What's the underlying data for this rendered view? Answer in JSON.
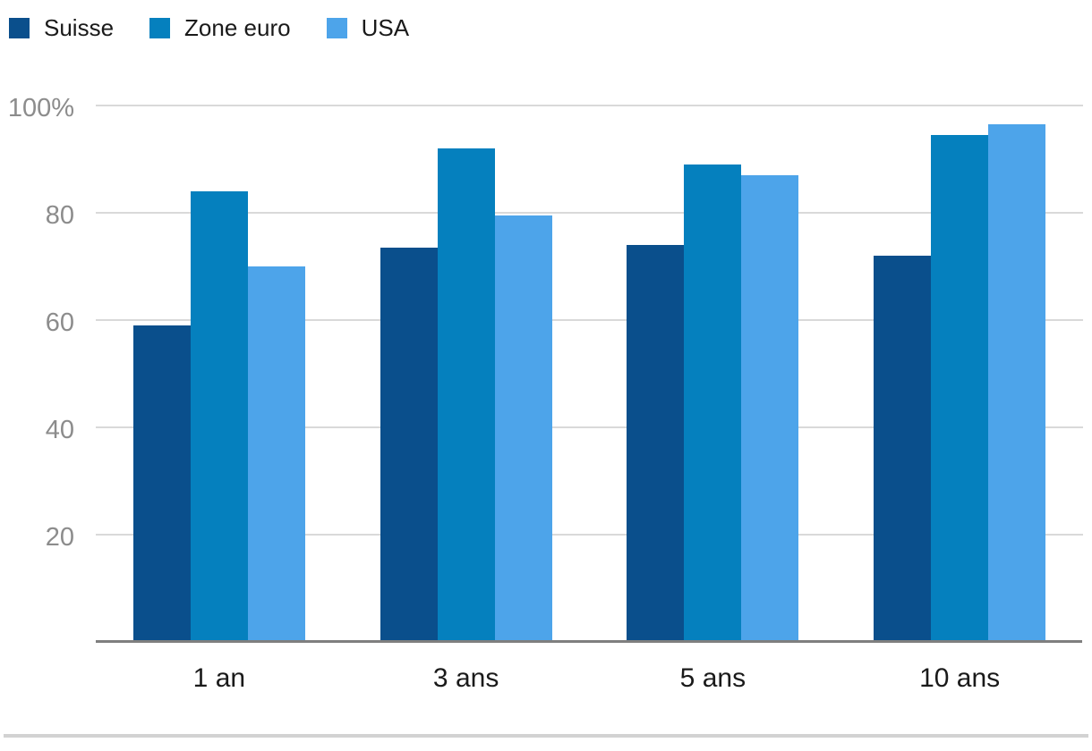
{
  "chart_data": {
    "type": "bar",
    "title": "",
    "xlabel": "",
    "ylabel": "",
    "categories": [
      "1 an",
      "3 ans",
      "5 ans",
      "10 ans"
    ],
    "series": [
      {
        "name": "Suisse",
        "color": "#0a4f8c",
        "values": [
          59,
          73.5,
          74,
          72
        ]
      },
      {
        "name": "Zone euro",
        "color": "#0580be",
        "values": [
          84,
          92,
          89,
          94.5
        ]
      },
      {
        "name": "USA",
        "color": "#4da4ea",
        "values": [
          70,
          79.5,
          87,
          96.5
        ]
      }
    ],
    "ylim": [
      0,
      100
    ],
    "yticks": [
      {
        "value": 100,
        "label": "100%"
      },
      {
        "value": 80,
        "label": "80"
      },
      {
        "value": 60,
        "label": "60"
      },
      {
        "value": 40,
        "label": "40"
      },
      {
        "value": 20,
        "label": "20"
      }
    ],
    "grid": "horizontal",
    "legend_position": "top-left",
    "colors": {
      "gridline": "#d9d9d9",
      "axis_line": "#7f7f7f",
      "tick_label": "#8c8c8c",
      "category_label": "#1a1a1a",
      "divider": "#d2d2d2",
      "background": "#ffffff"
    }
  }
}
